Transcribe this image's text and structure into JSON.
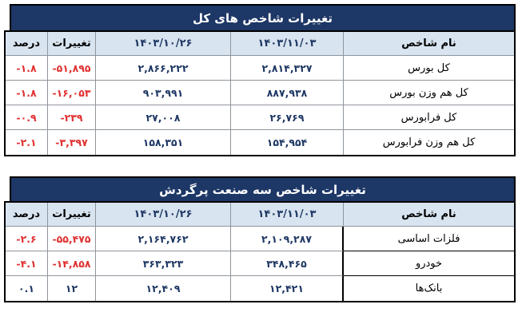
{
  "colors": {
    "title_bg": "#1d3766",
    "header_bg": "#d8e4f0",
    "negative_text": "#e03131",
    "number_text": "#1f3864",
    "outer_border": "#000000",
    "grid_line": "#8f959c"
  },
  "tables": [
    {
      "title": "تغییرات شاخص های کل",
      "columns": {
        "percent": "درصد",
        "change": "تغییرات",
        "date_old": "۱۴۰۳/۱۰/۲۶",
        "date_new": "۱۴۰۳/۱۱/۰۳",
        "name": "نام شاخص"
      },
      "rows": [
        {
          "name": "کل بورس",
          "date_new": "۲,۸۱۴,۳۲۷",
          "date_old": "۲,۸۶۶,۲۲۲",
          "change": "-۵۱,۸۹۵",
          "percent": "-۱.۸"
        },
        {
          "name": "کل هم وزن بورس",
          "date_new": "۸۸۷,۹۳۸",
          "date_old": "۹۰۳,۹۹۱",
          "change": "-۱۶,۰۵۳",
          "percent": "-۱.۸"
        },
        {
          "name": "کل فرابورس",
          "date_new": "۲۶,۷۶۹",
          "date_old": "۲۷,۰۰۸",
          "change": "-۲۳۹",
          "percent": "-۰.۹"
        },
        {
          "name": "کل هم وزن فرابورس",
          "date_new": "۱۵۴,۹۵۴",
          "date_old": "۱۵۸,۳۵۱",
          "change": "-۳,۳۹۷",
          "percent": "-۲.۱"
        }
      ]
    },
    {
      "title": "تغییرات شاخص سه صنعت پرگردش",
      "columns": {
        "percent": "درصد",
        "change": "تغییرات",
        "date_old": "۱۴۰۳/۱۰/۲۶",
        "date_new": "۱۴۰۳/۱۱/۰۳",
        "name": "نام شاخص"
      },
      "rows": [
        {
          "name": "فلزات اساسی",
          "date_new": "۲,۱۰۹,۲۸۷",
          "date_old": "۲,۱۶۴,۷۶۲",
          "change": "-۵۵,۴۷۵",
          "percent": "-۲.۶"
        },
        {
          "name": "خودرو",
          "date_new": "۳۴۸,۴۶۵",
          "date_old": "۳۶۳,۳۲۳",
          "change": "-۱۴,۸۵۸",
          "percent": "-۴.۱"
        },
        {
          "name": "بانک‌ها",
          "date_new": "۱۲,۴۲۱",
          "date_old": "۱۲,۴۰۹",
          "change": "۱۲",
          "percent": "۰.۱"
        }
      ]
    }
  ],
  "chart_data": [
    {
      "type": "table",
      "title": "تغییرات شاخص های کل",
      "columns": [
        "نام شاخص",
        "۱۴۰۳/۱۱/۰۳",
        "۱۴۰۳/۱۰/۲۶",
        "تغییرات",
        "درصد"
      ],
      "rows": [
        [
          "کل بورس",
          2814327,
          2866222,
          -51895,
          -1.8
        ],
        [
          "کل هم وزن بورس",
          887938,
          903991,
          -16053,
          -1.8
        ],
        [
          "کل فرابورس",
          26769,
          27008,
          -239,
          -0.9
        ],
        [
          "کل هم وزن فرابورس",
          154954,
          158351,
          -3397,
          -2.1
        ]
      ]
    },
    {
      "type": "table",
      "title": "تغییرات شاخص سه صنعت پرگردش",
      "columns": [
        "نام شاخص",
        "۱۴۰۳/۱۱/۰۳",
        "۱۴۰۳/۱۰/۲۶",
        "تغییرات",
        "درصد"
      ],
      "rows": [
        [
          "فلزات اساسی",
          2109287,
          2164762,
          -55475,
          -2.6
        ],
        [
          "خودرو",
          348465,
          363323,
          -14858,
          -4.1
        ],
        [
          "بانک‌ها",
          12421,
          12409,
          12,
          0.1
        ]
      ]
    }
  ]
}
